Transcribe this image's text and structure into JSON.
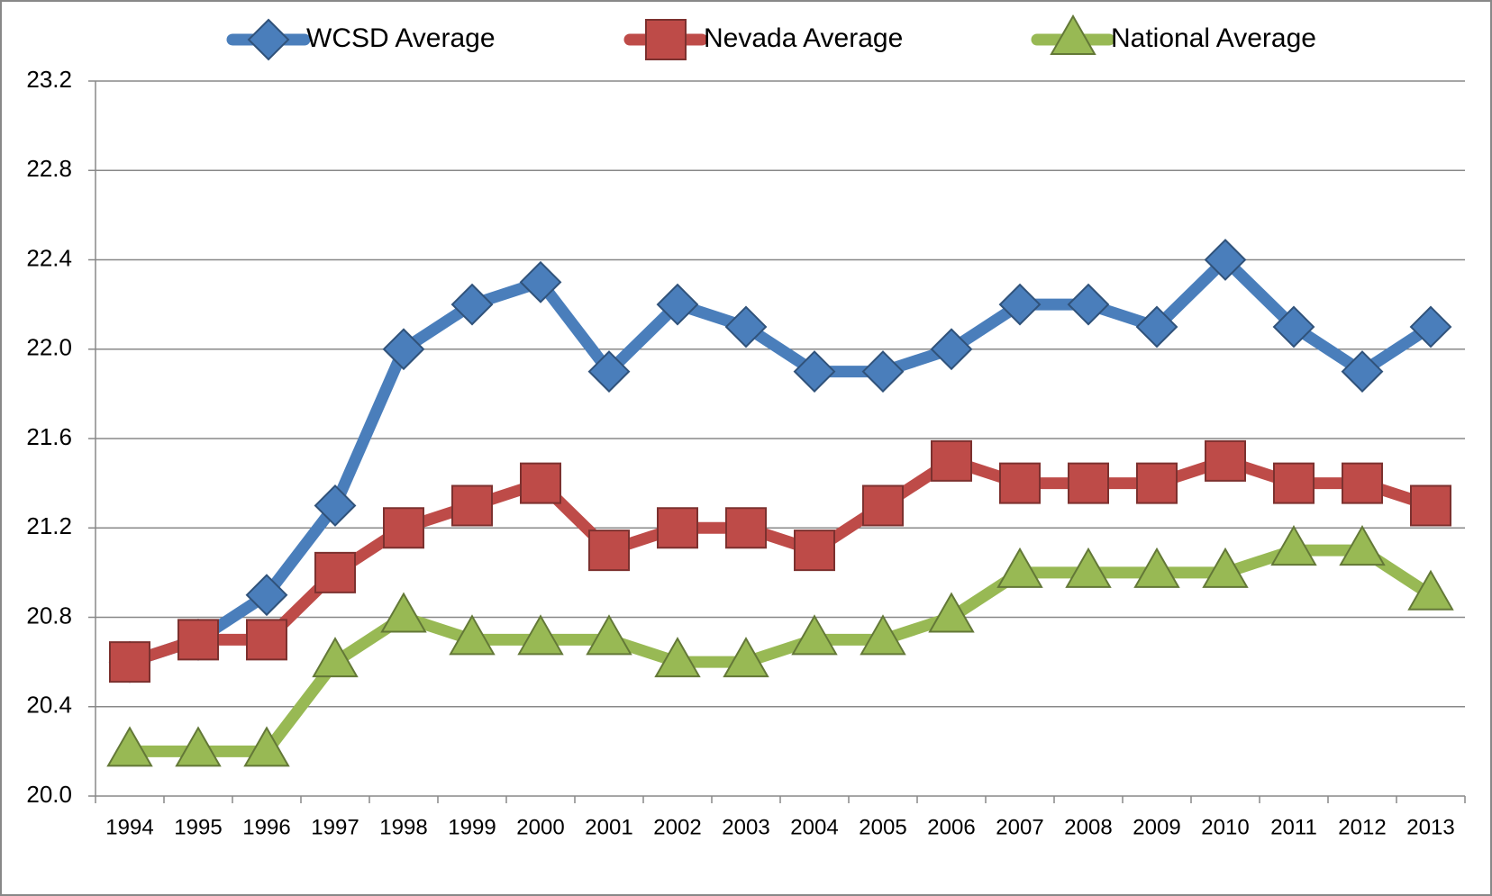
{
  "chart_data": {
    "type": "line",
    "categories": [
      "1994",
      "1995",
      "1996",
      "1997",
      "1998",
      "1999",
      "2000",
      "2001",
      "2002",
      "2003",
      "2004",
      "2005",
      "2006",
      "2007",
      "2008",
      "2009",
      "2010",
      "2011",
      "2012",
      "2013"
    ],
    "series": [
      {
        "name": "WCSD Average",
        "color": "#4a7ebb",
        "marker": "diamond",
        "values": [
          20.6,
          20.7,
          20.9,
          21.3,
          22.0,
          22.2,
          22.3,
          21.9,
          22.2,
          22.1,
          21.9,
          21.9,
          22.0,
          22.2,
          22.2,
          22.1,
          22.4,
          22.1,
          21.9,
          22.1
        ]
      },
      {
        "name": "Nevada Average",
        "color": "#be4b48",
        "marker": "square",
        "values": [
          20.6,
          20.7,
          20.7,
          21.0,
          21.2,
          21.3,
          21.4,
          21.1,
          21.2,
          21.2,
          21.1,
          21.3,
          21.5,
          21.4,
          21.4,
          21.4,
          21.5,
          21.4,
          21.4,
          21.3
        ]
      },
      {
        "name": "National Average",
        "color": "#98b954",
        "marker": "triangle",
        "values": [
          20.2,
          20.2,
          20.2,
          20.6,
          20.8,
          20.7,
          20.7,
          20.7,
          20.6,
          20.6,
          20.7,
          20.7,
          20.8,
          21.0,
          21.0,
          21.0,
          21.0,
          21.1,
          21.1,
          20.9
        ]
      }
    ],
    "ylim": [
      20.0,
      23.2
    ],
    "yticks": [
      {
        "value": 20.0,
        "label": "20.0"
      },
      20.4,
      20.8,
      21.2,
      21.6,
      {
        "value": 22.0,
        "label": "22.0"
      },
      22.4,
      22.8,
      23.2
    ],
    "grid": true,
    "legend": "top"
  }
}
